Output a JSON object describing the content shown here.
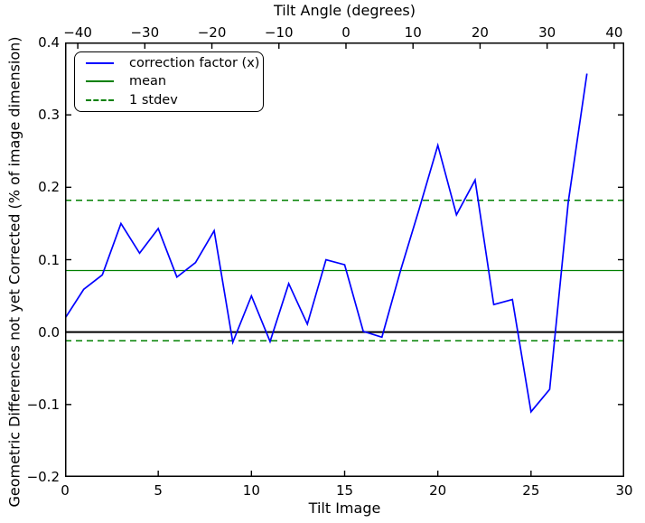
{
  "chart_data": {
    "type": "line",
    "xlabel": "Tilt Image",
    "ylabel": "Geometric Differences not yet Corrected (% of image dimension)",
    "xlim": [
      0,
      30
    ],
    "ylim": [
      -0.2,
      0.4
    ],
    "x_ticks": [
      0,
      5,
      10,
      15,
      20,
      25,
      30
    ],
    "y_ticks": [
      0.4,
      0.3,
      0.2,
      0.1,
      0.0,
      -0.1,
      -0.2
    ],
    "top_axis": {
      "title": "Tilt Angle (degrees)",
      "ticks": [
        -40,
        -30,
        -20,
        -10,
        0,
        10,
        20,
        30,
        40
      ],
      "range": [
        -41.9,
        41.5
      ]
    },
    "grid": false,
    "series": [
      {
        "name": "correction factor (x)",
        "color": "#0000ff",
        "style": "solid",
        "x": [
          0,
          1,
          2,
          3,
          4,
          5,
          6,
          7,
          8,
          9,
          10,
          11,
          12,
          13,
          14,
          15,
          16,
          17,
          18,
          19,
          20,
          21,
          22,
          23,
          24,
          25,
          26,
          27,
          28
        ],
        "values": [
          0.019,
          0.059,
          0.079,
          0.15,
          0.109,
          0.143,
          0.076,
          0.096,
          0.14,
          -0.014,
          0.05,
          -0.013,
          0.067,
          0.011,
          0.1,
          0.093,
          0.001,
          -0.007,
          0.085,
          0.17,
          0.258,
          0.162,
          0.21,
          0.038,
          0.045,
          -0.11,
          -0.079,
          0.18,
          0.357
        ]
      }
    ],
    "reference_lines": [
      {
        "name": "zero-line",
        "value": 0.0,
        "color": "#000000",
        "style": "solid",
        "width": 2
      },
      {
        "name": "mean",
        "value": 0.085,
        "color": "#008000",
        "style": "solid",
        "width": 1.3
      },
      {
        "name": "stdev-upper",
        "value": 0.182,
        "color": "#008000",
        "style": "dashed",
        "width": 1.5
      },
      {
        "name": "stdev-lower",
        "value": -0.012,
        "color": "#008000",
        "style": "dashed",
        "width": 1.5
      }
    ],
    "legend": {
      "position": "upper left",
      "entries": [
        {
          "label": "correction factor (x)",
          "color": "#0000ff",
          "style": "solid"
        },
        {
          "label": "mean",
          "color": "#008000",
          "style": "solid"
        },
        {
          "label": "1 stdev",
          "color": "#008000",
          "style": "dashed"
        }
      ]
    }
  }
}
